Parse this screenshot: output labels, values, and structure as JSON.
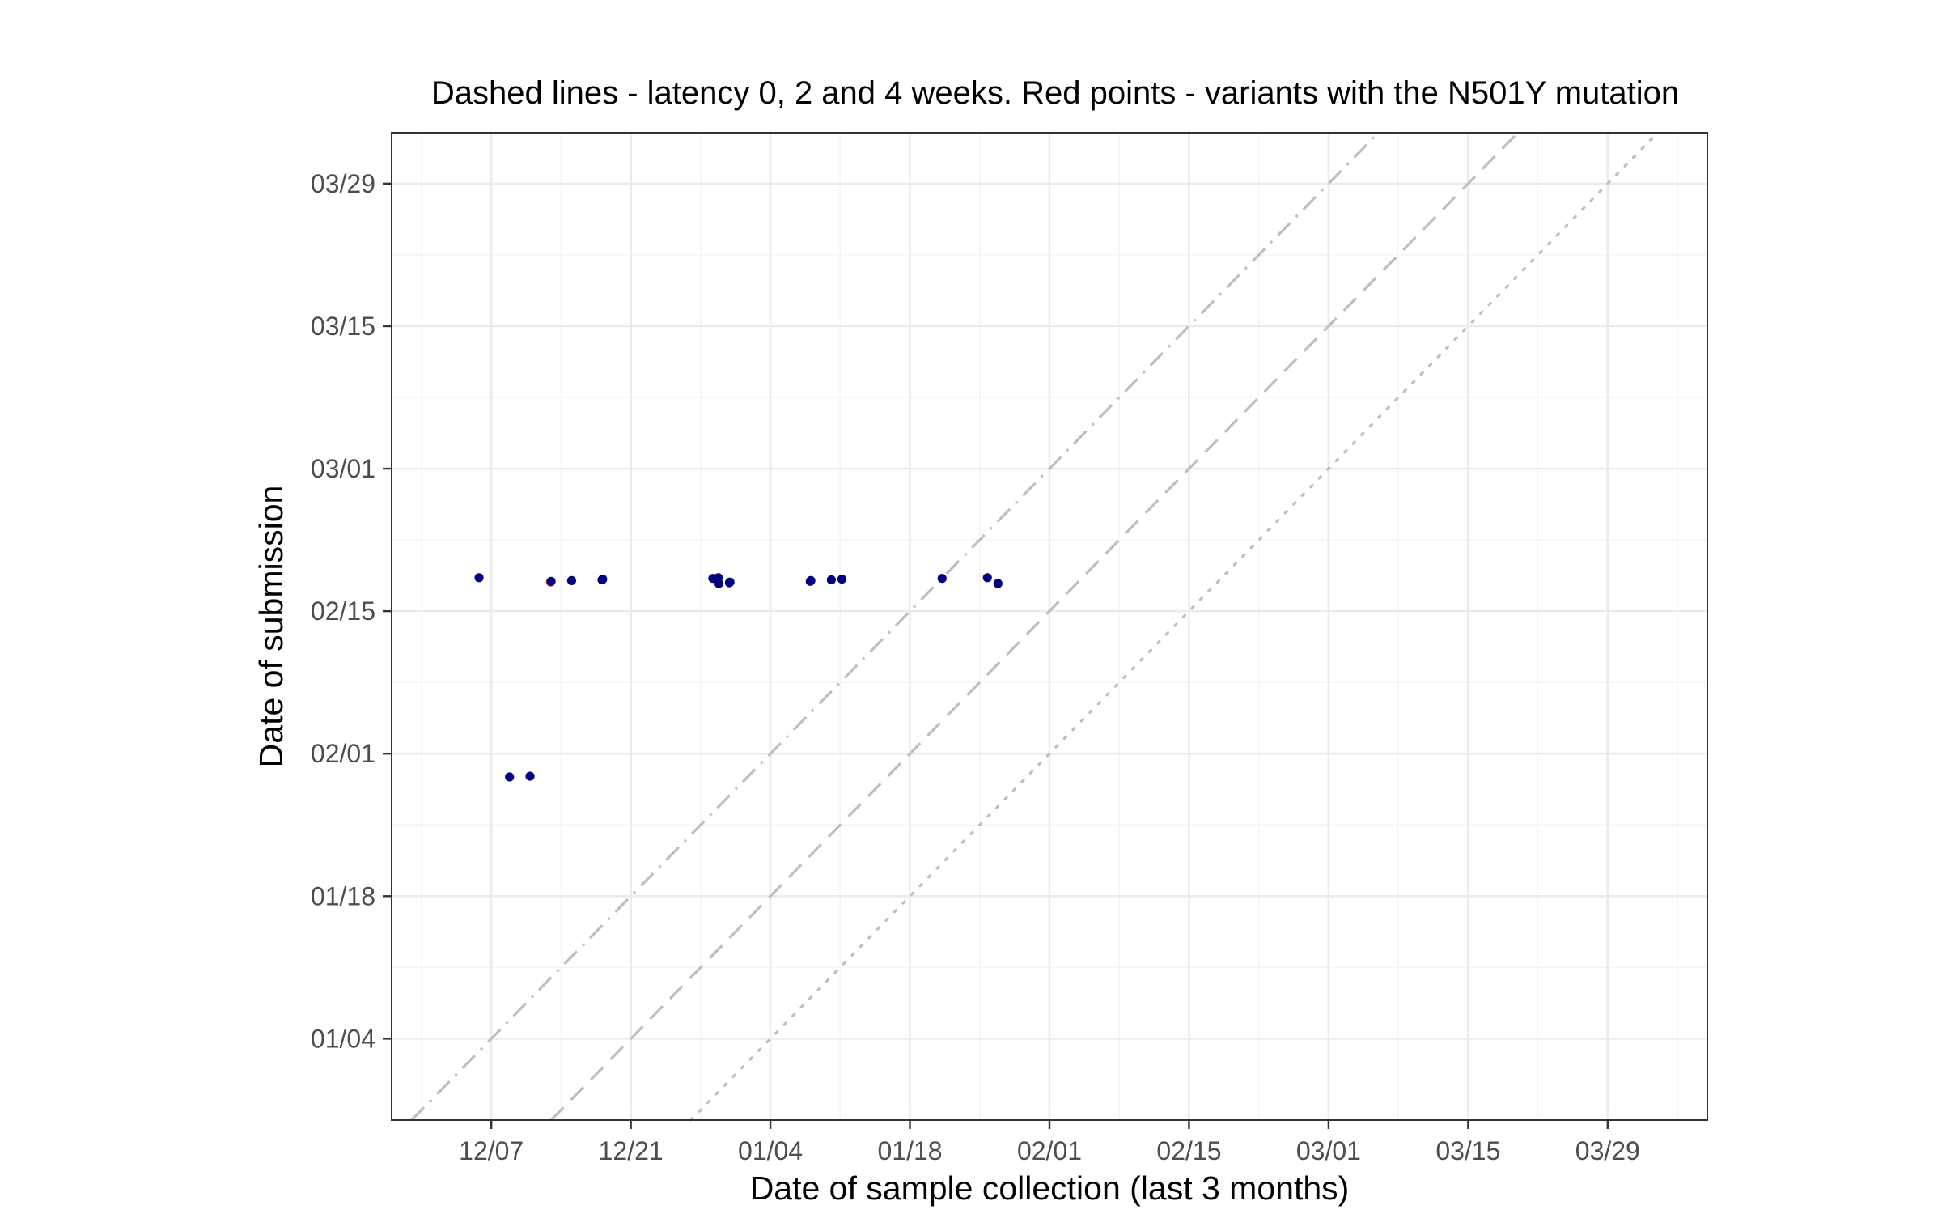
{
  "chart_data": {
    "type": "scatter",
    "title": "Dashed lines - latency 0, 2 and 4 weeks. Red points - variants with the N501Y mutation",
    "xlabel": "Date of sample collection (last 3 months)",
    "ylabel": "Date of submission",
    "x_ticks": [
      "12/07",
      "12/21",
      "01/04",
      "01/18",
      "02/01",
      "02/15",
      "03/01",
      "03/15",
      "03/29"
    ],
    "y_ticks": [
      "01/04",
      "01/18",
      "02/01",
      "02/15",
      "03/01",
      "03/15",
      "03/29"
    ],
    "xlim": [
      "2020-11-27",
      "2021-04-08"
    ],
    "ylim": [
      "2020-12-27",
      "2021-04-03"
    ],
    "grid": true,
    "reference_lines": [
      {
        "latency_weeks": 0,
        "style": "dotted"
      },
      {
        "latency_weeks": 2,
        "style": "dashed"
      },
      {
        "latency_weeks": 4,
        "style": "dashdot"
      }
    ],
    "colors": {
      "default": "#000080",
      "n501y": "#e8293a",
      "reference": "#bebebe"
    },
    "points": [
      {
        "x": "2020-12-06",
        "y": "2021-02-18",
        "n501y": false
      },
      {
        "x": "2020-12-09",
        "y": "2021-01-30",
        "n501y": false
      },
      {
        "x": "2020-12-11",
        "y": "2021-01-30",
        "n501y": false
      },
      {
        "x": "2020-12-13",
        "y": "2021-02-18",
        "n501y": true
      },
      {
        "x": "2020-12-13",
        "y": "2021-02-18",
        "n501y": false
      },
      {
        "x": "2020-12-15",
        "y": "2021-02-18",
        "n501y": false
      },
      {
        "x": "2020-12-18",
        "y": "2021-02-18",
        "n501y": false
      },
      {
        "x": "2020-12-18",
        "y": "2021-02-18",
        "n501y": false
      },
      {
        "x": "2020-12-29",
        "y": "2021-02-18",
        "n501y": false
      },
      {
        "x": "2020-12-30",
        "y": "2021-02-18",
        "n501y": false
      },
      {
        "x": "2020-12-30",
        "y": "2021-02-18",
        "n501y": false
      },
      {
        "x": "2020-12-31",
        "y": "2021-02-18",
        "n501y": false
      },
      {
        "x": "2020-12-31",
        "y": "2021-02-18",
        "n501y": false
      },
      {
        "x": "2021-01-08",
        "y": "2021-02-18",
        "n501y": false
      },
      {
        "x": "2021-01-08",
        "y": "2021-02-18",
        "n501y": false
      },
      {
        "x": "2021-01-10",
        "y": "2021-02-18",
        "n501y": false
      },
      {
        "x": "2021-01-11",
        "y": "2021-02-18",
        "n501y": false
      },
      {
        "x": "2021-01-21",
        "y": "2021-02-18",
        "n501y": false
      },
      {
        "x": "2021-01-26",
        "y": "2021-02-18",
        "n501y": false
      },
      {
        "x": "2021-01-27",
        "y": "2021-02-18",
        "n501y": false
      }
    ]
  }
}
